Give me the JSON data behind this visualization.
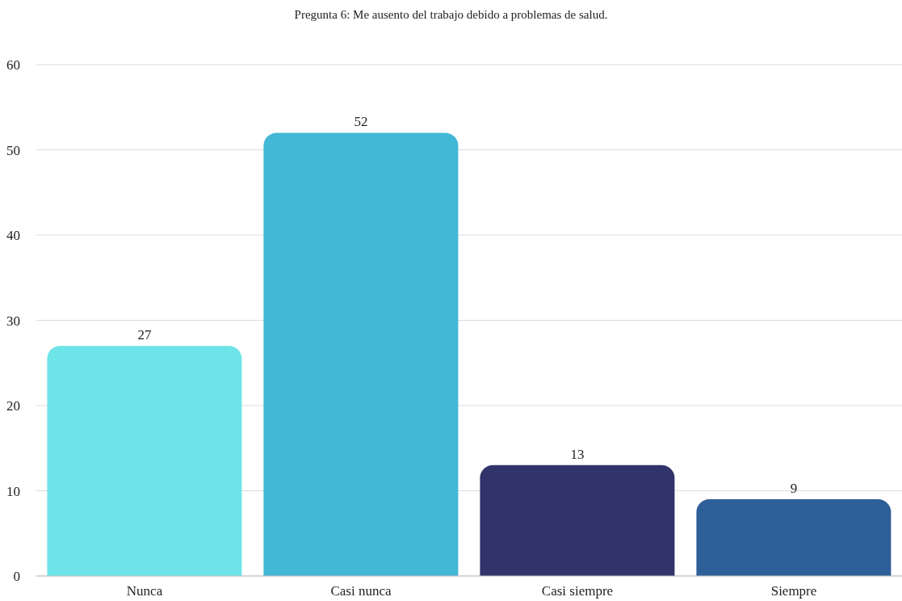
{
  "chart_data": {
    "type": "bar",
    "title": "Pregunta 6: Me ausento del trabajo debido a problemas de salud.",
    "categories": [
      "Nunca",
      "Casi nunca",
      "Casi siempre",
      "Siempre"
    ],
    "values": [
      27,
      52,
      13,
      9
    ],
    "colors": [
      "#6de5e8",
      "#42b7d6",
      "#31336b",
      "#2e5f98"
    ],
    "ylim": [
      0,
      60
    ],
    "yticks": [
      0,
      10,
      20,
      30,
      40,
      50,
      60
    ],
    "grid": "y",
    "data_labels": true
  }
}
